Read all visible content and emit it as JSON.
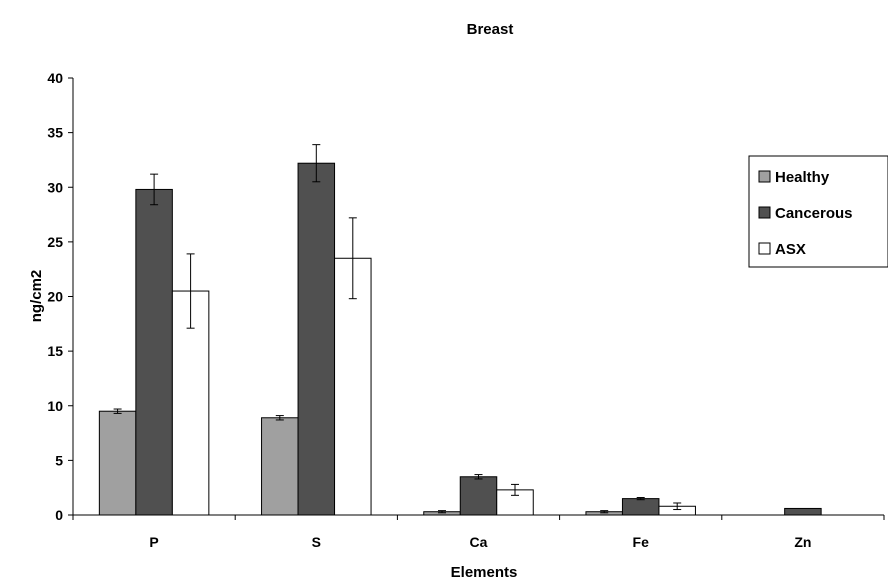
{
  "colors": {
    "healthy": "#a0a0a0",
    "cancerous": "#505050",
    "asx": "#ffffff",
    "stroke": "#000000"
  },
  "chart_data": {
    "type": "bar",
    "title": "Breast",
    "xlabel": "Elements",
    "ylabel": "ng/cm2",
    "ylim": [
      0,
      40
    ],
    "yticks": [
      "0",
      "5",
      "10",
      "15",
      "20",
      "25",
      "30",
      "35",
      "40"
    ],
    "categories": [
      "P",
      "S",
      "Ca",
      "Fe",
      "Zn"
    ],
    "grid": false,
    "legend_position": "right",
    "series": [
      {
        "name": "Healthy",
        "values": [
          9.5,
          8.9,
          0.3,
          0.3,
          null
        ],
        "errors": [
          0.2,
          0.2,
          0.1,
          0.1,
          null
        ]
      },
      {
        "name": "Cancerous",
        "values": [
          29.8,
          32.2,
          3.5,
          1.5,
          0.6
        ],
        "errors": [
          1.4,
          1.7,
          0.2,
          0.1,
          null
        ]
      },
      {
        "name": "ASX",
        "values": [
          20.5,
          23.5,
          2.3,
          0.8,
          null
        ],
        "errors": [
          3.4,
          3.7,
          0.5,
          0.3,
          null
        ]
      }
    ]
  }
}
